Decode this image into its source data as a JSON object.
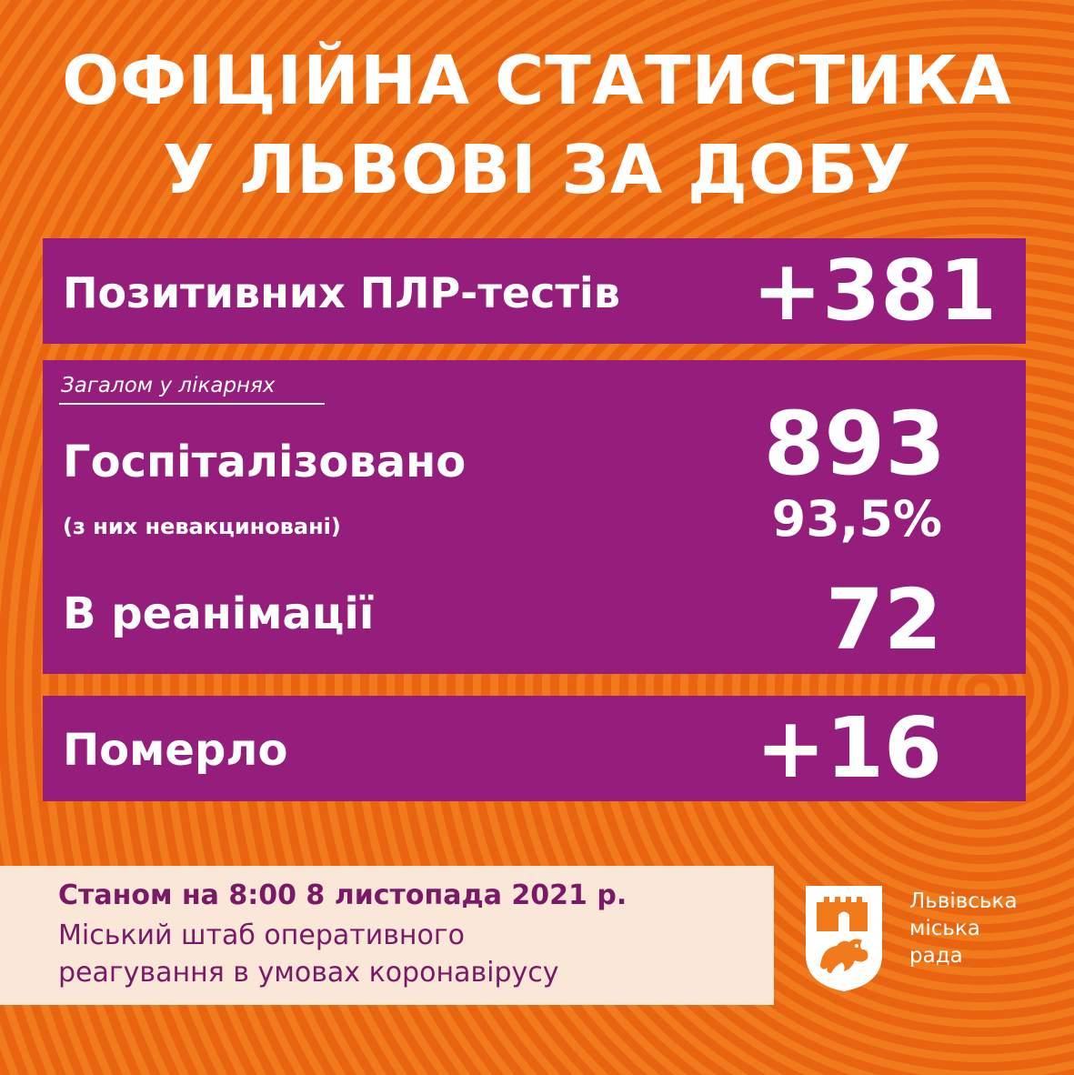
{
  "header": {
    "line1": "ОФІЦІЙНА СТАТИСТИКА",
    "line2": "У ЛЬВОВІ ЗА ДОБУ"
  },
  "tests": {
    "label": "Позитивних ПЛР-тестів",
    "value": "+381"
  },
  "hospital": {
    "caption": "Загалом у лікарнях",
    "hospitalized_label": "Госпіталізовано",
    "hospitalized_value": "893",
    "unvaccinated_label": "(з них невакциновані)",
    "unvaccinated_value": "93,5%",
    "icu_label": "В реанімації",
    "icu_value": "72"
  },
  "deaths": {
    "label": "Померло",
    "value": "+16"
  },
  "footer": {
    "date_line": "Станом на 8:00 8 листопада 2021 р.",
    "org_line1": "Міський штаб оперативного",
    "org_line2": "реагування в умовах коронавірусу"
  },
  "logo": {
    "icon": "lviv-coat-of-arms-icon",
    "line1": "Львівська",
    "line2": "міська",
    "line3": "рада"
  },
  "colors": {
    "background_orange": "#f07a1c",
    "panel_purple": "#951d7b",
    "footer_bg": "#fbe7d8",
    "footer_text": "#7a1966"
  }
}
